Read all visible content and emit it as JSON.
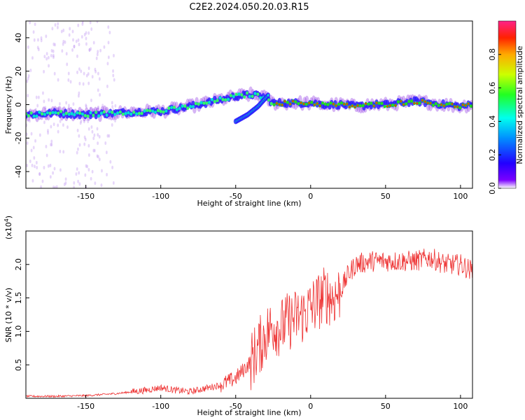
{
  "title": "C2E2.2024.050.20.03.R15",
  "colors": {
    "signal": "#ee3333",
    "axis": "#000000"
  },
  "chart_data": [
    {
      "type": "heatmap",
      "xlabel": "Height of straight line (km)",
      "ylabel": "Frequency (Hz)",
      "xlim": [
        -190,
        108
      ],
      "ylim": [
        -50,
        50
      ],
      "xticks": [
        -150,
        -100,
        -50,
        0,
        50,
        100
      ],
      "yticks": [
        -40,
        -20,
        0,
        20,
        40
      ],
      "colorbar": {
        "label": "Normalized spectral amplitude",
        "range": [
          0,
          1
        ],
        "ticks": [
          "0.0",
          "0.2",
          "0.4",
          "0.6",
          "0.8"
        ]
      },
      "ridge": {
        "x": [
          -190,
          -170,
          -150,
          -130,
          -110,
          -100,
          -80,
          -60,
          -50,
          -40,
          -32,
          -25,
          -10,
          0,
          10,
          20,
          30,
          40,
          50,
          60,
          70,
          80,
          90,
          100,
          108
        ],
        "y": [
          -6,
          -5,
          -6,
          -5,
          -4,
          -4,
          -1,
          3,
          5,
          6,
          5,
          1,
          1,
          1,
          0,
          0,
          -1,
          0,
          0,
          1,
          2,
          1,
          0,
          -1,
          0
        ]
      },
      "branch": {
        "x": [
          -50,
          -42,
          -35,
          -28
        ],
        "y": [
          -10,
          -6,
          -1,
          6
        ]
      }
    },
    {
      "type": "line",
      "xlabel": "Height of straight line (km)",
      "ylabel": "SNR (10 * v/v)",
      "scale_label": "(x10",
      "scale_exp": "4",
      "xlim": [
        -190,
        108
      ],
      "ylim": [
        0,
        2.5
      ],
      "xticks": [
        -150,
        -100,
        -50,
        0,
        50,
        100
      ],
      "yticks": [
        "0.5",
        "1.0",
        "1.5",
        "2.0"
      ],
      "series": [
        {
          "name": "SNR",
          "x": [
            -190,
            -170,
            -150,
            -130,
            -110,
            -100,
            -90,
            -80,
            -70,
            -60,
            -50,
            -45,
            -40,
            -35,
            -30,
            -25,
            -20,
            -15,
            -10,
            -5,
            0,
            5,
            10,
            15,
            20,
            25,
            30,
            40,
            50,
            60,
            70,
            80,
            90,
            100,
            108
          ],
          "y": [
            0.03,
            0.03,
            0.04,
            0.07,
            0.12,
            0.16,
            0.12,
            0.1,
            0.15,
            0.2,
            0.3,
            0.42,
            0.55,
            0.75,
            0.95,
            1.1,
            1.05,
            1.15,
            1.2,
            1.25,
            1.35,
            1.45,
            1.55,
            1.5,
            1.6,
            1.85,
            2.0,
            2.05,
            2.05,
            2.05,
            2.05,
            2.1,
            2.0,
            2.0,
            1.9
          ]
        }
      ]
    }
  ]
}
